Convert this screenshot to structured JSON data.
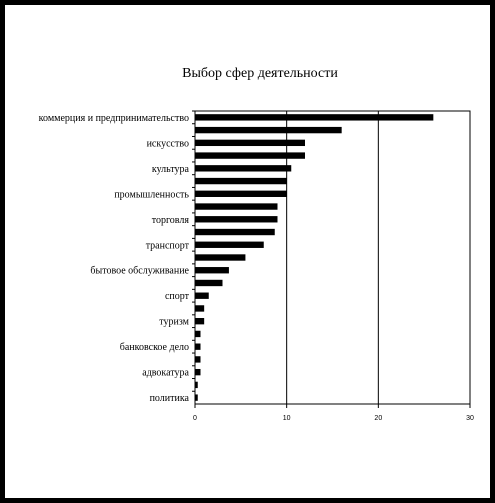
{
  "chart_data": {
    "type": "bar",
    "orientation": "horizontal",
    "title": "Выбор сфер деятельности",
    "xlabel": "",
    "ylabel": "",
    "xlim": [
      0,
      30
    ],
    "x_ticks": [
      "0",
      "10",
      "20",
      "30"
    ],
    "grid": "vertical",
    "labeled_categories": [
      "коммерция и предпринимательство",
      "искусство",
      "культура",
      "промышленность",
      "торговля",
      "транспорт",
      "бытовое обслуживание",
      "спорт",
      "туризм",
      "банковское дело",
      "адвокатура",
      "политика"
    ],
    "bar_count": 23,
    "values": [
      26,
      16,
      12,
      12,
      10.5,
      10,
      10,
      9,
      9,
      8.7,
      7.5,
      5.5,
      3.7,
      3,
      1.5,
      1,
      1,
      0.6,
      0.6,
      0.6,
      0.6,
      0.3,
      0.3
    ]
  }
}
